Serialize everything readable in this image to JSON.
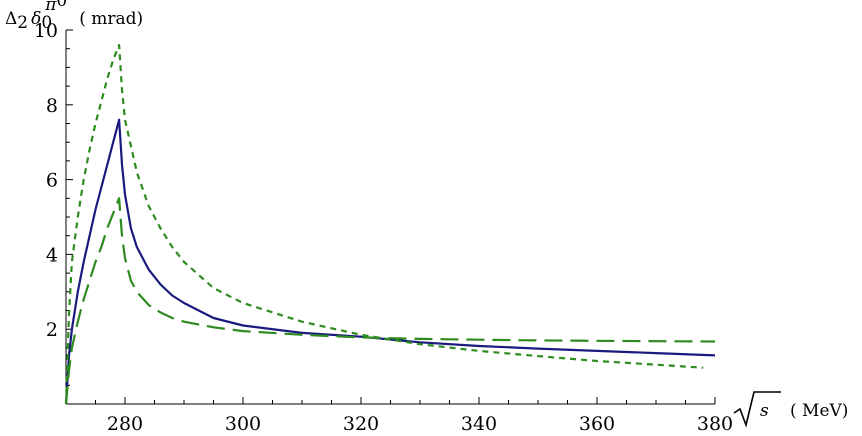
{
  "chart_data": {
    "type": "line",
    "title": "",
    "xlabel": {
      "symbol": "s",
      "unit": "( MeV)"
    },
    "ylabel": {
      "delta": "Δ",
      "delta_sub": "2",
      "deltas": "δ",
      "deltas_sub": "0",
      "sup": "π",
      "sup_sup": "0",
      "unit": "( mrad)"
    },
    "xlim": [
      270,
      380
    ],
    "ylim": [
      0,
      10
    ],
    "xticks": [
      280,
      300,
      320,
      340,
      360,
      380
    ],
    "yticks": [
      2,
      4,
      6,
      8,
      10
    ],
    "grid": false,
    "legend": "none",
    "series": [
      {
        "style": "solid",
        "color": "#1a1a7e",
        "x": [
          270,
          270.5,
          271,
          272,
          273,
          274,
          275,
          276,
          277,
          278,
          279,
          279.5,
          280,
          281,
          282,
          284,
          286,
          288,
          290,
          295,
          300,
          310,
          320,
          330,
          340,
          350,
          360,
          370,
          380
        ],
        "y": [
          0,
          1.3,
          2.0,
          3.0,
          3.8,
          4.5,
          5.2,
          5.8,
          6.4,
          7.0,
          7.6,
          6.4,
          5.6,
          4.7,
          4.2,
          3.6,
          3.2,
          2.9,
          2.7,
          2.3,
          2.1,
          1.9,
          1.8,
          1.65,
          1.55,
          1.48,
          1.42,
          1.36,
          1.3
        ]
      },
      {
        "style": "short-dash",
        "color": "#2e8b1f",
        "x": [
          270,
          270.5,
          271,
          272,
          273,
          274,
          275,
          276,
          277,
          278,
          279,
          279.5,
          280,
          281,
          282,
          284,
          286,
          288,
          290,
          295,
          300,
          310,
          320,
          330,
          340,
          350,
          360,
          370,
          378
        ],
        "y": [
          0,
          2.4,
          3.8,
          5.0,
          6.0,
          6.8,
          7.5,
          8.1,
          8.7,
          9.2,
          9.6,
          8.4,
          7.6,
          6.9,
          6.2,
          5.3,
          4.7,
          4.2,
          3.8,
          3.1,
          2.7,
          2.2,
          1.85,
          1.6,
          1.42,
          1.28,
          1.15,
          1.05,
          0.97
        ]
      },
      {
        "style": "long-dash",
        "color": "#2e8b1f",
        "x": [
          270,
          270.5,
          271,
          272,
          273,
          274,
          275,
          276,
          277,
          278,
          279,
          279.5,
          280,
          281,
          282,
          284,
          286,
          288,
          290,
          295,
          300,
          310,
          320,
          330,
          340,
          350,
          360,
          370,
          380
        ],
        "y": [
          0,
          0.9,
          1.5,
          2.2,
          2.8,
          3.3,
          3.8,
          4.2,
          4.7,
          5.1,
          5.5,
          4.5,
          3.9,
          3.3,
          3.0,
          2.65,
          2.45,
          2.3,
          2.2,
          2.05,
          1.95,
          1.85,
          1.78,
          1.74,
          1.72,
          1.7,
          1.69,
          1.68,
          1.67
        ]
      }
    ]
  }
}
